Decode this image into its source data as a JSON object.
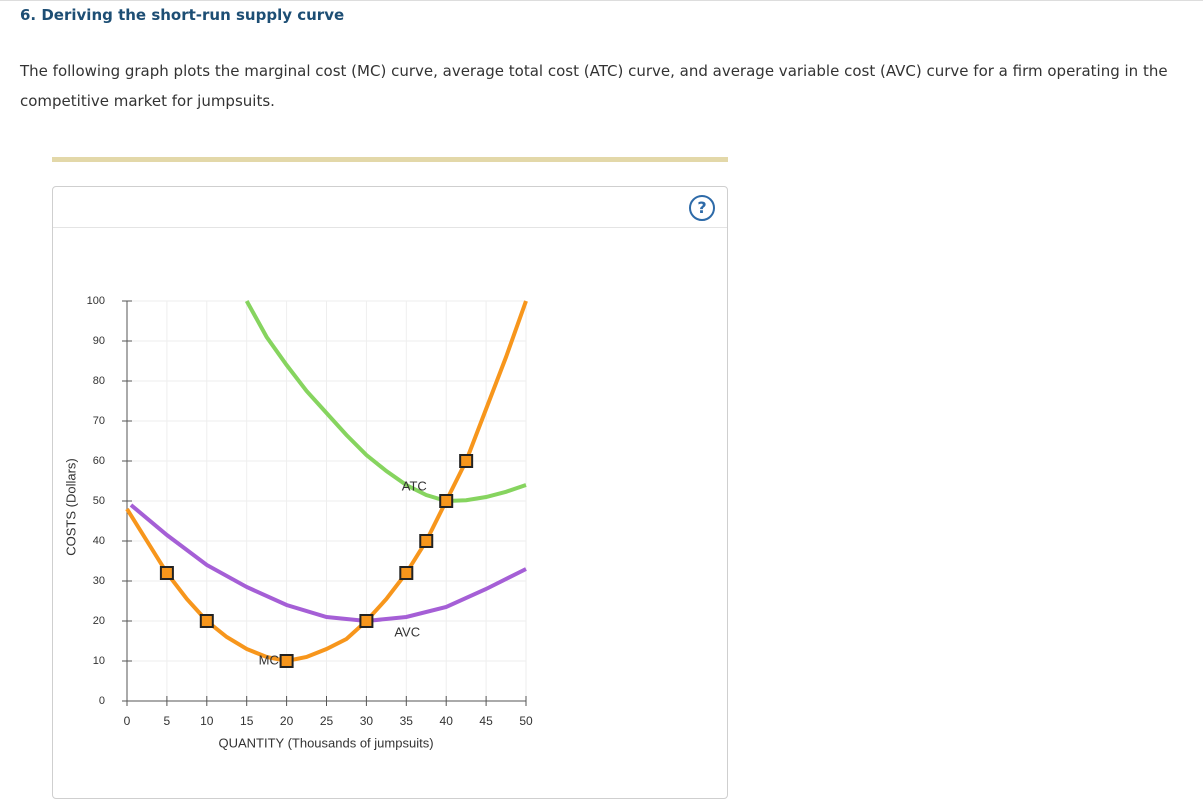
{
  "header": {
    "title": "6. Deriving the short-run supply curve"
  },
  "intro": "The following graph plots the marginal cost (MC) curve, average total cost (ATC) curve, and average variable cost (AVC) curve for a firm operating in the competitive market for jumpsuits.",
  "help_icon": "?",
  "chart_data": {
    "type": "line",
    "x_label": "QUANTITY (Thousands of jumpsuits)",
    "y_label": "COSTS (Dollars)",
    "xlim": [
      0,
      50
    ],
    "xticks": [
      0,
      5,
      10,
      15,
      20,
      25,
      30,
      35,
      40,
      45,
      50
    ],
    "ylim": [
      0,
      100
    ],
    "yticks": [
      0,
      10,
      20,
      30,
      40,
      50,
      60,
      70,
      80,
      90,
      100
    ],
    "grid": true,
    "series": [
      {
        "name": "MC",
        "color": "#f7961c",
        "x": [
          0,
          2.5,
          5,
          7.5,
          10,
          12.5,
          15,
          17.5,
          20,
          22.5,
          25,
          27.5,
          30,
          32.5,
          35,
          37.5,
          40,
          42.5,
          45,
          47.5,
          50
        ],
        "values": [
          48,
          40,
          32,
          25.5,
          20,
          16,
          13,
          11,
          10,
          11,
          13,
          15.5,
          20,
          25.5,
          32,
          40,
          50,
          60,
          73,
          86,
          100
        ]
      },
      {
        "name": "ATC",
        "color": "#86d45f",
        "x": [
          15,
          17.5,
          20,
          22.5,
          25,
          27.5,
          30,
          32.5,
          35,
          37.5,
          40,
          42.5,
          45,
          47.5,
          50
        ],
        "values": [
          100,
          91,
          84,
          77.5,
          72,
          66.5,
          61.5,
          57.5,
          54,
          51.5,
          50,
          50.2,
          51,
          52.3,
          54
        ]
      },
      {
        "name": "AVC",
        "color": "#a55fd6",
        "x": [
          0.5,
          5,
          10,
          15,
          20,
          25,
          30,
          35,
          40,
          45,
          50
        ],
        "values": [
          49,
          41.5,
          34,
          28.5,
          24,
          21,
          20,
          21,
          23.5,
          28,
          33
        ]
      }
    ],
    "points": {
      "color": "#f7961c",
      "x": [
        5,
        10,
        20,
        30,
        35,
        37.5,
        40,
        42.5
      ],
      "values": [
        32,
        20,
        10,
        20,
        32,
        40,
        50,
        60
      ]
    }
  }
}
